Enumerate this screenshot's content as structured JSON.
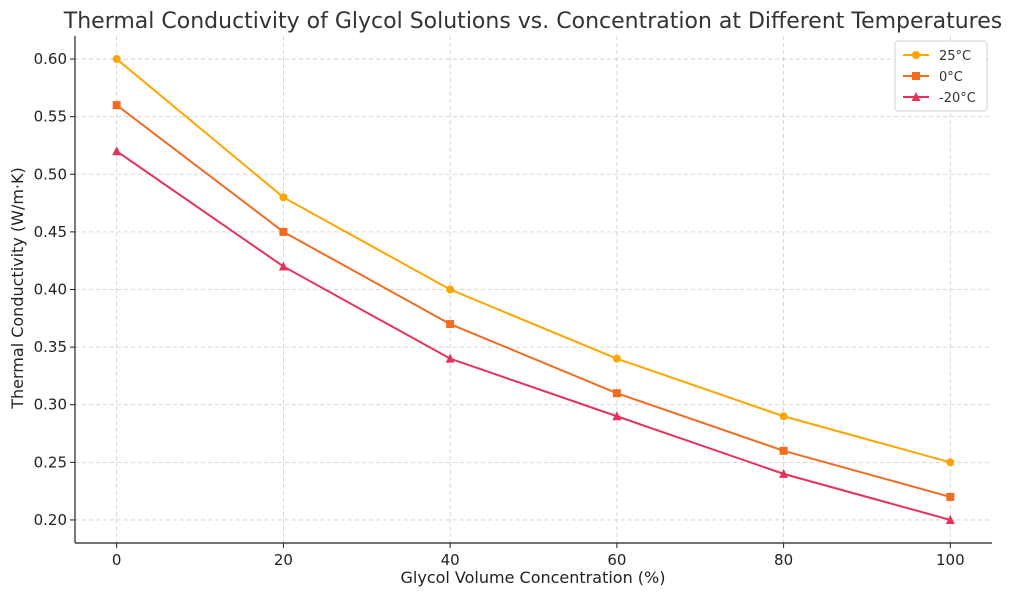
{
  "chart_data": {
    "type": "line",
    "title": "Thermal Conductivity of Glycol Solutions vs. Concentration at Different Temperatures",
    "xlabel": "Glycol Volume Concentration (%)",
    "ylabel": "Thermal Conductivity (W/m·K)",
    "x": [
      0,
      20,
      40,
      60,
      80,
      100
    ],
    "xlim": [
      -5,
      105
    ],
    "ylim": [
      0.18,
      0.62
    ],
    "xticks": [
      "0",
      "20",
      "40",
      "60",
      "80",
      "100"
    ],
    "yticks": [
      "0.20",
      "0.25",
      "0.30",
      "0.35",
      "0.40",
      "0.45",
      "0.50",
      "0.55",
      "0.60"
    ],
    "grid": true,
    "legend_position": "top-right",
    "series": [
      {
        "name": "25°C",
        "color": "#FFA500",
        "marker": "circle",
        "values": [
          0.6,
          0.48,
          0.4,
          0.34,
          0.29,
          0.25
        ]
      },
      {
        "name": "0°C",
        "color": "#F26B21",
        "marker": "square",
        "values": [
          0.56,
          0.45,
          0.37,
          0.31,
          0.26,
          0.22
        ]
      },
      {
        "name": "-20°C",
        "color": "#E8315A",
        "marker": "triangle",
        "values": [
          0.52,
          0.42,
          0.34,
          0.29,
          0.24,
          0.2
        ]
      }
    ]
  }
}
